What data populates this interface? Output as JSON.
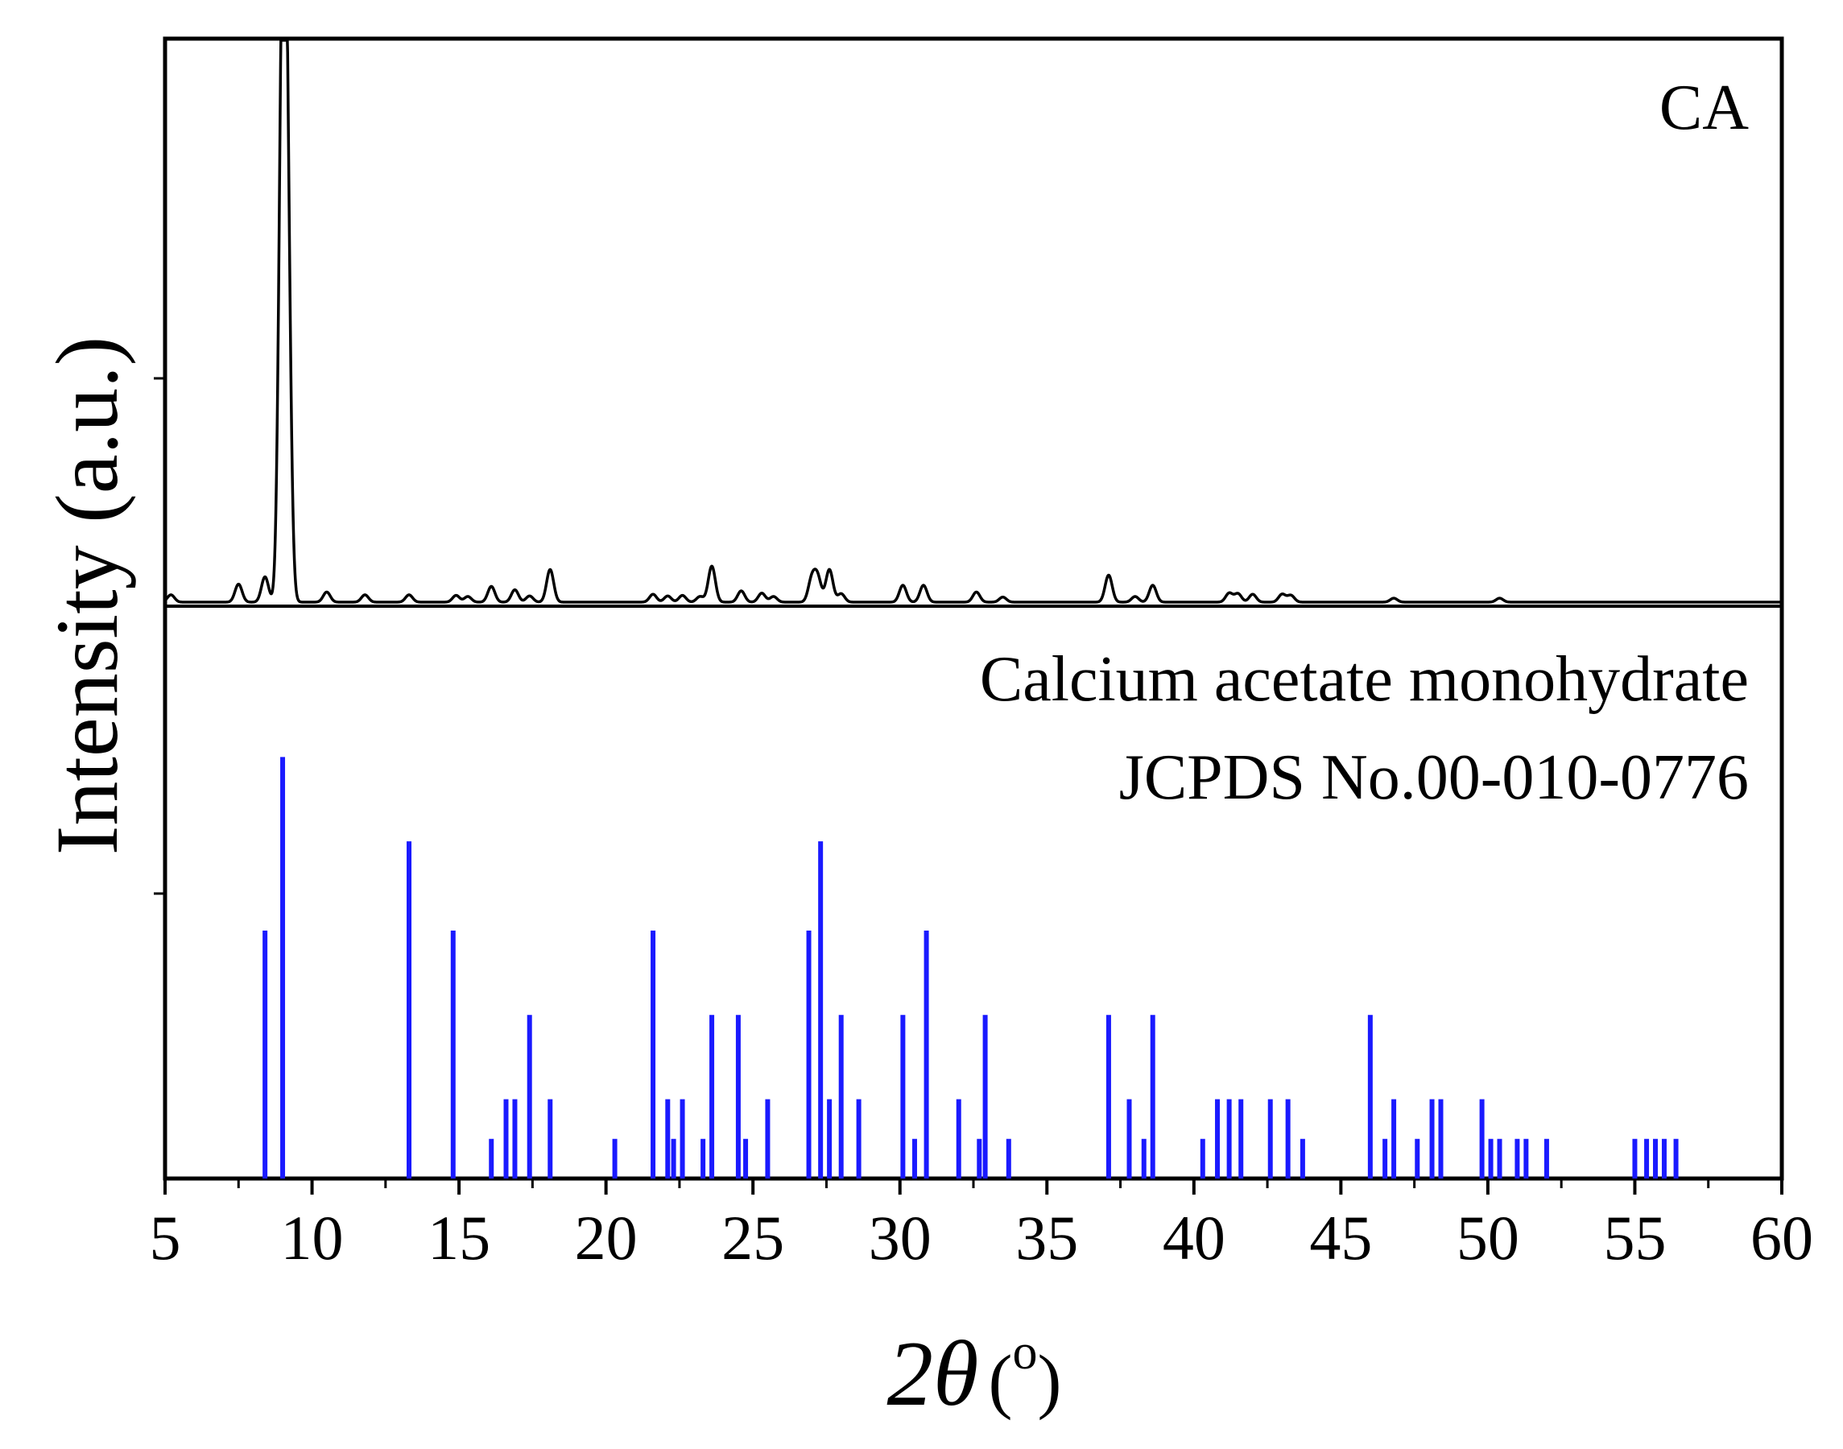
{
  "chart_data": {
    "type": "line",
    "xlabel_prefix": "2",
    "xlabel_symbol": "θ",
    "xlabel_unit": "o",
    "ylabel": "Intensity (a.u.)",
    "xlim": [
      5,
      60
    ],
    "xticks": [
      5,
      10,
      15,
      20,
      25,
      30,
      35,
      40,
      45,
      50,
      55,
      60
    ],
    "y_tick_labels": false,
    "panels": [
      {
        "label": "CA",
        "series": [
          {
            "style": "line",
            "color": "#000000",
            "ylim": [
              0,
              100
            ],
            "baseline": 0,
            "width": 0.12,
            "peaks": [
              {
                "x": 5.2,
                "y": 1.3
              },
              {
                "x": 7.5,
                "y": 3.2
              },
              {
                "x": 8.4,
                "y": 4.5
              },
              {
                "x": 9.0,
                "y": 100
              },
              {
                "x": 9.15,
                "y": 62
              },
              {
                "x": 10.5,
                "y": 1.8
              },
              {
                "x": 11.8,
                "y": 1.3
              },
              {
                "x": 13.3,
                "y": 1.3
              },
              {
                "x": 14.9,
                "y": 1.2
              },
              {
                "x": 15.3,
                "y": 1.0
              },
              {
                "x": 16.1,
                "y": 2.8
              },
              {
                "x": 16.9,
                "y": 2.2
              },
              {
                "x": 17.4,
                "y": 1.1
              },
              {
                "x": 18.1,
                "y": 5.8
              },
              {
                "x": 21.6,
                "y": 1.4
              },
              {
                "x": 22.1,
                "y": 1.1
              },
              {
                "x": 22.6,
                "y": 1.2
              },
              {
                "x": 23.2,
                "y": 1.0
              },
              {
                "x": 23.6,
                "y": 6.4
              },
              {
                "x": 24.6,
                "y": 2.0
              },
              {
                "x": 25.3,
                "y": 1.6
              },
              {
                "x": 25.7,
                "y": 1.0
              },
              {
                "x": 27.0,
                "y": 4.0
              },
              {
                "x": 27.2,
                "y": 4.3
              },
              {
                "x": 27.6,
                "y": 5.8
              },
              {
                "x": 28.0,
                "y": 1.5
              },
              {
                "x": 30.1,
                "y": 3.0
              },
              {
                "x": 30.8,
                "y": 3.0
              },
              {
                "x": 32.6,
                "y": 1.8
              },
              {
                "x": 33.5,
                "y": 0.9
              },
              {
                "x": 37.1,
                "y": 4.8
              },
              {
                "x": 38.0,
                "y": 1.0
              },
              {
                "x": 38.6,
                "y": 3.0
              },
              {
                "x": 41.2,
                "y": 1.6
              },
              {
                "x": 41.5,
                "y": 1.5
              },
              {
                "x": 42.0,
                "y": 1.4
              },
              {
                "x": 43.0,
                "y": 1.4
              },
              {
                "x": 43.3,
                "y": 1.2
              },
              {
                "x": 46.8,
                "y": 0.7
              },
              {
                "x": 50.4,
                "y": 0.7
              }
            ]
          }
        ]
      },
      {
        "label_lines": [
          "Calcium acetate monohydrate",
          "JCPDS No.00-010-0776"
        ],
        "series": [
          {
            "style": "stick",
            "color": "#1a1aff",
            "ylim": [
              0,
              100
            ],
            "baseline": 0,
            "points": [
              {
                "x": 8.4,
                "y": 50
              },
              {
                "x": 9.0,
                "y": 85
              },
              {
                "x": 13.3,
                "y": 68
              },
              {
                "x": 14.8,
                "y": 50
              },
              {
                "x": 16.1,
                "y": 8
              },
              {
                "x": 16.6,
                "y": 16
              },
              {
                "x": 16.9,
                "y": 16
              },
              {
                "x": 17.4,
                "y": 33
              },
              {
                "x": 18.1,
                "y": 16
              },
              {
                "x": 20.3,
                "y": 8
              },
              {
                "x": 21.6,
                "y": 50
              },
              {
                "x": 22.1,
                "y": 16
              },
              {
                "x": 22.3,
                "y": 8
              },
              {
                "x": 22.6,
                "y": 16
              },
              {
                "x": 23.3,
                "y": 8
              },
              {
                "x": 23.6,
                "y": 33
              },
              {
                "x": 24.5,
                "y": 33
              },
              {
                "x": 24.75,
                "y": 8
              },
              {
                "x": 25.5,
                "y": 16
              },
              {
                "x": 26.9,
                "y": 50
              },
              {
                "x": 27.3,
                "y": 68
              },
              {
                "x": 27.6,
                "y": 16
              },
              {
                "x": 28.0,
                "y": 33
              },
              {
                "x": 28.6,
                "y": 16
              },
              {
                "x": 30.1,
                "y": 33
              },
              {
                "x": 30.5,
                "y": 8
              },
              {
                "x": 30.9,
                "y": 50
              },
              {
                "x": 32.0,
                "y": 16
              },
              {
                "x": 32.7,
                "y": 8
              },
              {
                "x": 32.9,
                "y": 33
              },
              {
                "x": 33.7,
                "y": 8
              },
              {
                "x": 37.1,
                "y": 33
              },
              {
                "x": 37.8,
                "y": 16
              },
              {
                "x": 38.3,
                "y": 8
              },
              {
                "x": 38.6,
                "y": 33
              },
              {
                "x": 40.3,
                "y": 8
              },
              {
                "x": 40.8,
                "y": 16
              },
              {
                "x": 41.2,
                "y": 16
              },
              {
                "x": 41.6,
                "y": 16
              },
              {
                "x": 42.6,
                "y": 16
              },
              {
                "x": 43.2,
                "y": 16
              },
              {
                "x": 43.7,
                "y": 8
              },
              {
                "x": 46.0,
                "y": 33
              },
              {
                "x": 46.5,
                "y": 8
              },
              {
                "x": 46.8,
                "y": 16
              },
              {
                "x": 47.6,
                "y": 8
              },
              {
                "x": 48.1,
                "y": 16
              },
              {
                "x": 48.4,
                "y": 16
              },
              {
                "x": 49.8,
                "y": 16
              },
              {
                "x": 50.1,
                "y": 8
              },
              {
                "x": 50.4,
                "y": 8
              },
              {
                "x": 51.0,
                "y": 8
              },
              {
                "x": 51.3,
                "y": 8
              },
              {
                "x": 52.0,
                "y": 8
              },
              {
                "x": 55.0,
                "y": 8
              },
              {
                "x": 55.4,
                "y": 8
              },
              {
                "x": 55.7,
                "y": 8
              },
              {
                "x": 56.0,
                "y": 8
              },
              {
                "x": 56.4,
                "y": 8
              }
            ]
          }
        ]
      }
    ]
  }
}
